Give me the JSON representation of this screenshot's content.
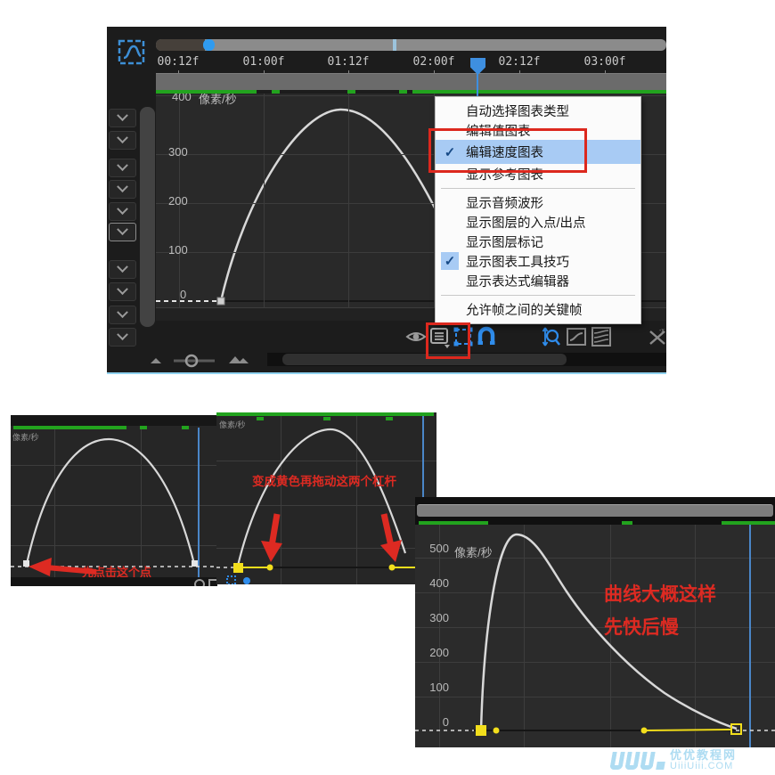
{
  "main_panel": {
    "timeline": {
      "labels": [
        "00:12f",
        "01:00f",
        "01:12f",
        "02:00f",
        "02:12f",
        "03:00f"
      ]
    },
    "graph": {
      "unit_label": "像素/秒",
      "y_ticks": [
        "400",
        "300",
        "200",
        "100",
        "0"
      ],
      "curve": "speed curve: starts 0, peaks ~380 px/s, returns toward 0"
    },
    "context_menu": {
      "items": [
        {
          "label": "自动选择图表类型",
          "checked": false,
          "highlighted": false
        },
        {
          "label": "编辑值图表",
          "checked": false,
          "highlighted": false
        },
        {
          "label": "编辑速度图表",
          "checked": true,
          "highlighted": true
        },
        {
          "label": "显示参考图表",
          "checked": false,
          "highlighted": false
        },
        {
          "type": "separator"
        },
        {
          "label": "显示音频波形",
          "checked": false,
          "highlighted": false
        },
        {
          "label": "显示图层的入点/出点",
          "checked": false,
          "highlighted": false
        },
        {
          "label": "显示图层标记",
          "checked": false,
          "highlighted": false
        },
        {
          "label": "显示图表工具技巧",
          "checked": true,
          "highlighted": false
        },
        {
          "label": "显示表达式编辑器",
          "checked": false,
          "highlighted": false
        },
        {
          "type": "separator"
        },
        {
          "label": "允许帧之间的关键帧",
          "checked": false,
          "highlighted": false
        }
      ],
      "check_glyph": "✓"
    },
    "toolbar_icons": [
      "eye",
      "graph-type-menu",
      "transform-box",
      "snap-magnet",
      "auto-zoom",
      "speed-graph",
      "all-graphs",
      "separate-dimensions"
    ]
  },
  "shots": {
    "left": {
      "unit_label": "像素/秒",
      "annotation": "先点击这个点"
    },
    "mid": {
      "unit_label": "像素/秒",
      "annotation": "变成黄色再拖动这两个杠杆"
    },
    "right": {
      "unit_label": "像素/秒",
      "y_ticks": [
        "500",
        "400",
        "300",
        "200",
        "100",
        "0"
      ],
      "annotation_line1": "曲线大概这样",
      "annotation_line2": "先快后慢",
      "curve": "speed curve: fast rise above 500 px/s then slow decay to 0"
    }
  },
  "watermark": {
    "line1": "优优教程网",
    "line2": "UiiiUiii.COM"
  },
  "colors": {
    "accent_blue": "#2f8ceb",
    "green": "#22a31e",
    "red_annotation": "#dc2a20",
    "yellow_handle": "#f2de1c",
    "menu_highlight": "#a8cbf4",
    "curve": "#d8d8d8"
  }
}
